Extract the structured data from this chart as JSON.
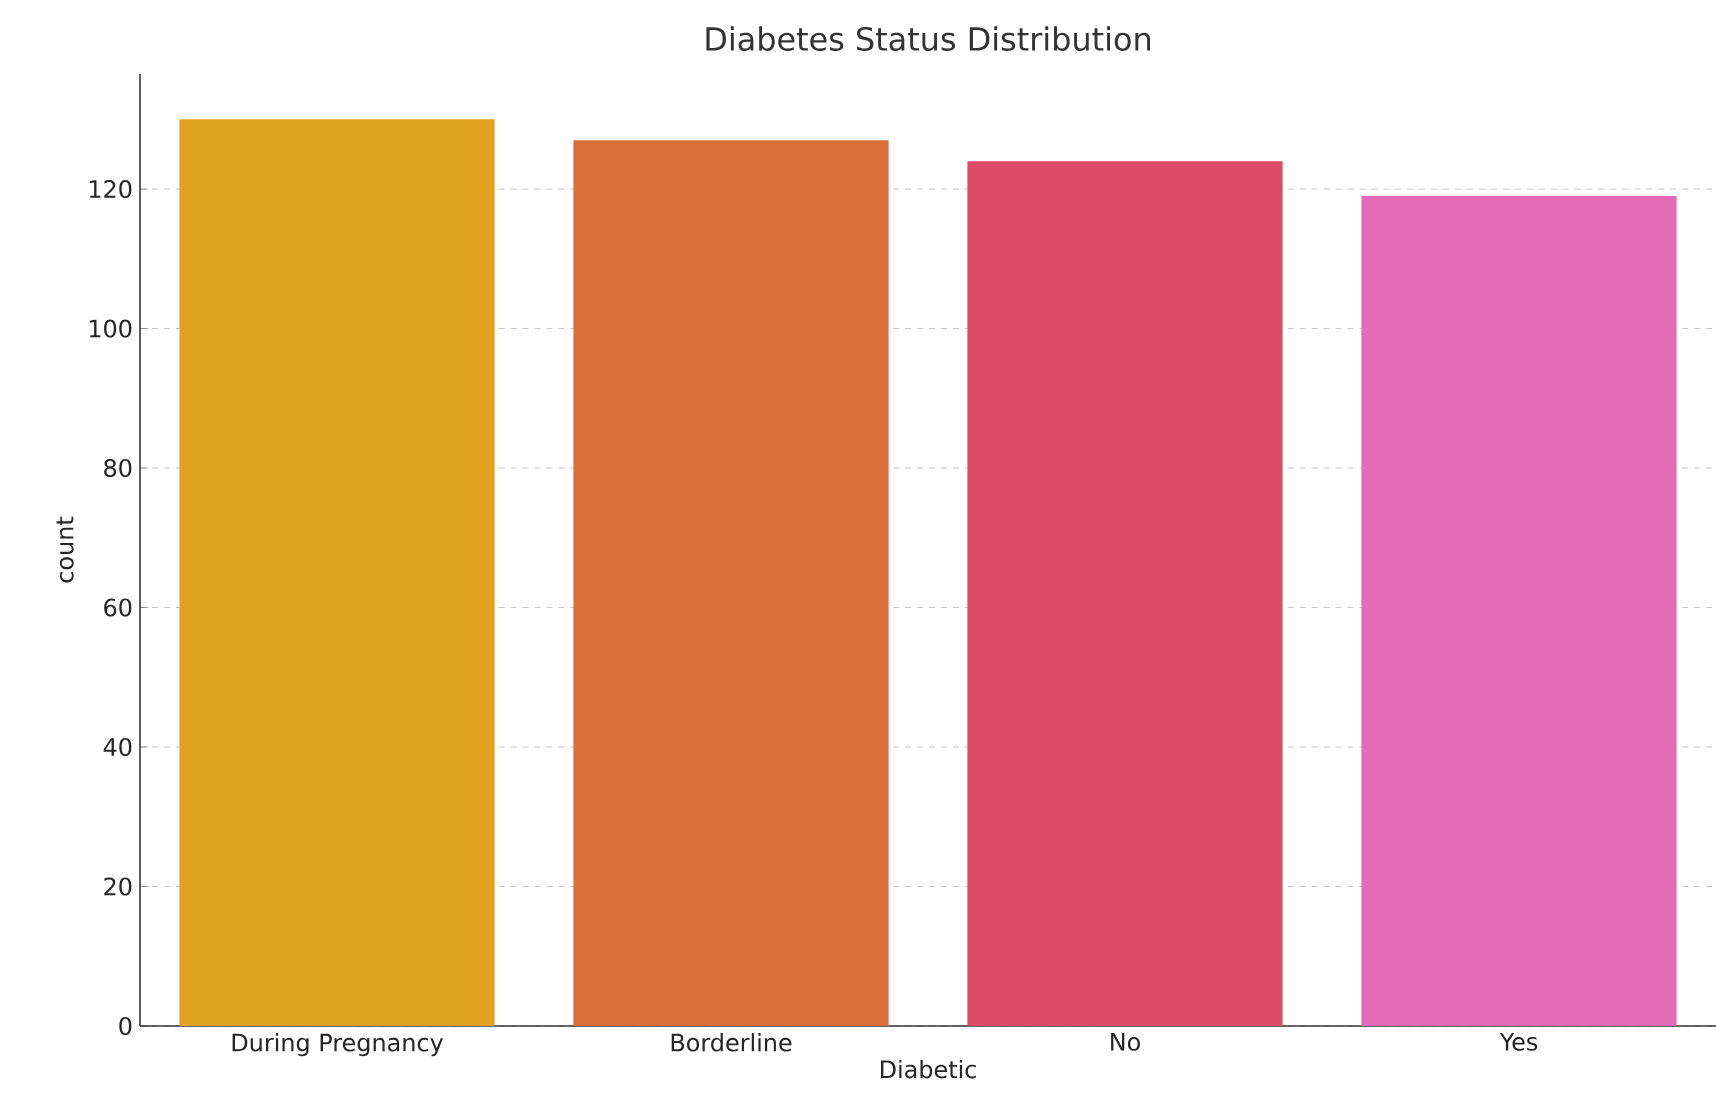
{
  "chart_data": {
    "type": "bar",
    "title": "Diabetes Status Distribution",
    "xlabel": "Diabetic",
    "ylabel": "count",
    "categories": [
      "During Pregnancy",
      "Borderline",
      "No",
      "Yes"
    ],
    "values": [
      130,
      127,
      124,
      119
    ],
    "colors": [
      "#dfa120",
      "#d9703c",
      "#dc4b67",
      "#e36bb5"
    ],
    "ylim": [
      0,
      136.5
    ],
    "yticks": [
      0,
      20,
      40,
      60,
      80,
      100,
      120
    ],
    "grid": "y"
  }
}
